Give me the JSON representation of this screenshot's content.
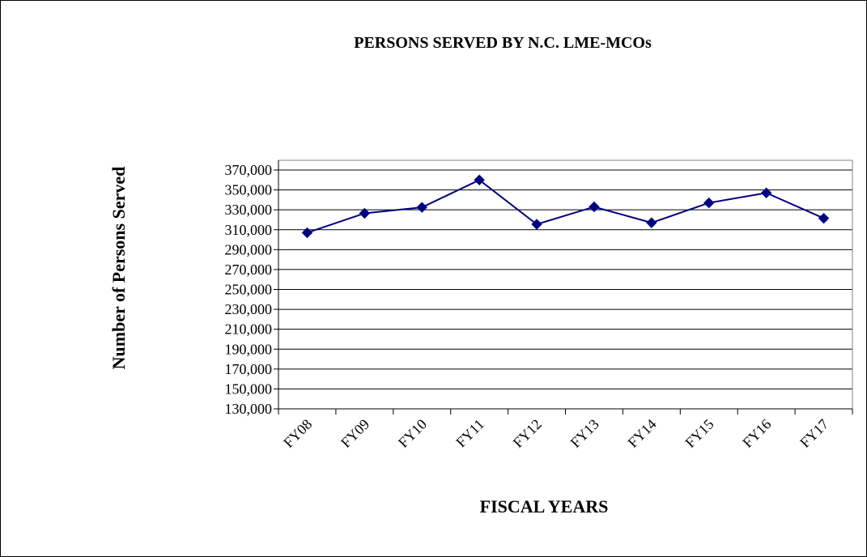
{
  "chart_data": {
    "type": "line",
    "title": "PERSONS SERVED BY N.C. LME-MCOs",
    "xlabel": "FISCAL YEARS",
    "ylabel": "Number of Persons Served",
    "categories": [
      "FY08",
      "FY09",
      "FY10",
      "FY11",
      "FY12",
      "FY13",
      "FY14",
      "FY15",
      "FY16",
      "FY17"
    ],
    "series": [
      {
        "values": [
          307000,
          326500,
          332500,
          360000,
          315500,
          333000,
          317000,
          337000,
          347000,
          321500
        ]
      }
    ],
    "ylim": [
      130000,
      370000
    ],
    "ytick_labels": [
      "370,000",
      "350,000",
      "330,000",
      "310,000",
      "290,000",
      "270,000",
      "250,000",
      "230,000",
      "210,000",
      "190,000",
      "170,000",
      "150,000",
      "130,000"
    ],
    "grid": true,
    "legend": "none",
    "colors": {
      "series": "#000080",
      "grid": "#000000",
      "plot_border": "#808080"
    }
  }
}
